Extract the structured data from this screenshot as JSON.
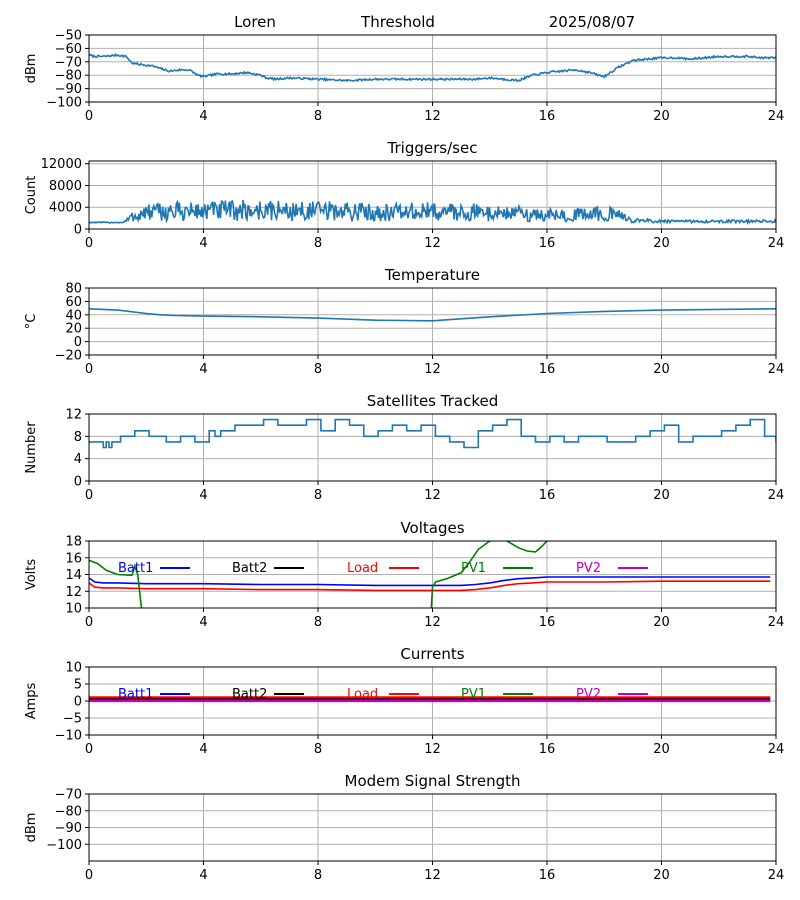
{
  "header": {
    "station": "Loren",
    "plot": "Threshold",
    "date": "2025/08/07"
  },
  "chart_data": [
    {
      "type": "line",
      "title": "",
      "ylabel": "dBm",
      "xlim": [
        0,
        24
      ],
      "ylim": [
        -100,
        -50
      ],
      "xticks": [
        0,
        4,
        8,
        12,
        16,
        20,
        24
      ],
      "yticks": [
        -100,
        -90,
        -80,
        -70,
        -60,
        -50
      ],
      "grid": true,
      "noise": 0.8,
      "series": [
        {
          "name": "",
          "color": "#1f77b4",
          "x": [
            0,
            0.2,
            0.5,
            1.0,
            1.3,
            1.5,
            1.8,
            2.2,
            2.5,
            2.8,
            3.2,
            3.5,
            3.8,
            4.0,
            4.5,
            5.0,
            5.5,
            6.0,
            6.2,
            6.5,
            7.0,
            8.0,
            9.0,
            10.0,
            11.0,
            12.0,
            13.0,
            13.5,
            14.0,
            14.5,
            15.0,
            15.5,
            16.0,
            16.5,
            17.0,
            17.5,
            17.8,
            18.0,
            18.5,
            19.0,
            20.0,
            20.5,
            21.0,
            22.0,
            23.0,
            23.5,
            24.0
          ],
          "y": [
            -65,
            -66,
            -66,
            -65,
            -66,
            -71,
            -72,
            -73,
            -75,
            -77,
            -76,
            -76,
            -80,
            -81,
            -79,
            -79,
            -78,
            -80,
            -82,
            -83,
            -82,
            -83,
            -84,
            -83,
            -83,
            -83,
            -83,
            -83,
            -82,
            -83,
            -84,
            -80,
            -78,
            -77,
            -76,
            -78,
            -80,
            -81,
            -74,
            -69,
            -67,
            -67,
            -68,
            -66,
            -66,
            -67,
            -67
          ]
        }
      ]
    },
    {
      "type": "line",
      "title": "Triggers/sec",
      "ylabel": "Count",
      "xlim": [
        0,
        24
      ],
      "ylim": [
        0,
        12500
      ],
      "xticks": [
        0,
        4,
        8,
        12,
        16,
        20,
        24
      ],
      "yticks": [
        0,
        4000,
        8000,
        12000
      ],
      "grid": true,
      "noise": 0.85,
      "series": [
        {
          "name": "",
          "color": "#1f77b4",
          "x": [
            0,
            1.2,
            1.5,
            2.0,
            3.0,
            4.0,
            5.0,
            6.0,
            7.0,
            8.0,
            9.0,
            10.0,
            11.0,
            12.0,
            13.0,
            14.0,
            15.0,
            16.0,
            17.0,
            18.0,
            18.5,
            19.0,
            20.0,
            21.0,
            22.0,
            23.0,
            24.0
          ],
          "y": [
            1200,
            1200,
            2200,
            3000,
            3200,
            3300,
            3400,
            3400,
            3300,
            3300,
            3200,
            3100,
            3100,
            3200,
            3100,
            3000,
            2800,
            2500,
            2600,
            2900,
            2400,
            1600,
            1400,
            1400,
            1400,
            1400,
            1400
          ]
        }
      ]
    },
    {
      "type": "line",
      "title": "Temperature",
      "ylabel": "°C",
      "xlim": [
        0,
        24
      ],
      "ylim": [
        -20,
        80
      ],
      "xticks": [
        0,
        4,
        8,
        12,
        16,
        20,
        24
      ],
      "yticks": [
        -20,
        0,
        20,
        40,
        60,
        80
      ],
      "grid": true,
      "noise": 0,
      "series": [
        {
          "name": "",
          "color": "#1f77b4",
          "x": [
            0,
            1.0,
            2.0,
            2.5,
            3.0,
            4.0,
            6.0,
            8.0,
            10.0,
            12.0,
            13.0,
            14.0,
            16.0,
            18.0,
            20.0,
            22.0,
            24.0
          ],
          "y": [
            49,
            47,
            42,
            40,
            39,
            38,
            37,
            35,
            32,
            31,
            34,
            37,
            42,
            45,
            47,
            48,
            49
          ]
        }
      ]
    },
    {
      "type": "line",
      "title": "Satellites Tracked",
      "ylabel": "Number",
      "xlim": [
        0,
        24
      ],
      "ylim": [
        0,
        12
      ],
      "xticks": [
        0,
        4,
        8,
        12,
        16,
        20,
        24
      ],
      "yticks": [
        0,
        4,
        8,
        12
      ],
      "grid": true,
      "noise": 0,
      "step": true,
      "series": [
        {
          "name": "",
          "color": "#1f77b4",
          "x": [
            0,
            0.5,
            0.6,
            0.7,
            0.8,
            0.9,
            1.1,
            1.6,
            2.1,
            2.7,
            3.2,
            3.7,
            4.2,
            4.4,
            4.6,
            5.1,
            5.6,
            6.1,
            6.6,
            7.1,
            7.6,
            8.1,
            8.6,
            9.1,
            9.6,
            10.1,
            10.6,
            11.1,
            11.6,
            12.1,
            12.6,
            13.1,
            13.6,
            14.1,
            14.6,
            15.1,
            15.6,
            16.1,
            16.6,
            17.1,
            17.6,
            18.1,
            18.6,
            19.1,
            19.6,
            20.1,
            20.6,
            21.1,
            21.6,
            22.1,
            22.6,
            23.1,
            23.6,
            24.0
          ],
          "y": [
            7,
            6,
            7,
            6,
            7,
            7,
            8,
            9,
            8,
            7,
            8,
            7,
            9,
            8,
            9,
            10,
            10,
            11,
            10,
            10,
            11,
            9,
            11,
            10,
            8,
            9,
            10,
            9,
            10,
            8,
            7,
            6,
            9,
            10,
            11,
            8,
            7,
            8,
            7,
            8,
            8,
            7,
            7,
            8,
            9,
            10,
            7,
            8,
            8,
            9,
            10,
            11,
            8,
            7
          ]
        }
      ]
    },
    {
      "type": "line",
      "title": "Voltages",
      "ylabel": "Volts",
      "xlim": [
        0,
        24
      ],
      "ylim": [
        10,
        18
      ],
      "xticks": [
        0,
        4,
        8,
        12,
        16,
        20,
        24
      ],
      "yticks": [
        10,
        12,
        14,
        16,
        18
      ],
      "grid": true,
      "noise": 0,
      "legend": "inside-top",
      "series": [
        {
          "name": "Batt1",
          "color": "#0000ff",
          "x": [
            0,
            0.2,
            0.5,
            1.0,
            2.0,
            4.0,
            6.0,
            8.0,
            10.0,
            12.0,
            13.0,
            13.5,
            14.0,
            14.5,
            15.0,
            15.5,
            16.0,
            18.0,
            20.0,
            22.0,
            23.8
          ],
          "y": [
            13.6,
            13.1,
            13.0,
            13.0,
            12.9,
            12.9,
            12.8,
            12.8,
            12.7,
            12.7,
            12.7,
            12.8,
            13.0,
            13.3,
            13.5,
            13.6,
            13.7,
            13.7,
            13.7,
            13.7,
            13.7
          ]
        },
        {
          "name": "Batt2",
          "color": "#000000",
          "x": [],
          "y": []
        },
        {
          "name": "Load",
          "color": "#ff0000",
          "x": [
            0,
            0.2,
            0.5,
            1.0,
            2.0,
            4.0,
            6.0,
            8.0,
            10.0,
            12.0,
            13.0,
            13.5,
            14.0,
            14.5,
            15.0,
            15.5,
            16.0,
            18.0,
            20.0,
            22.0,
            23.8
          ],
          "y": [
            13.0,
            12.5,
            12.4,
            12.4,
            12.3,
            12.3,
            12.2,
            12.2,
            12.1,
            12.1,
            12.1,
            12.2,
            12.4,
            12.7,
            12.9,
            13.0,
            13.1,
            13.1,
            13.2,
            13.2,
            13.2
          ]
        },
        {
          "name": "PV1",
          "color": "#008000",
          "x": [
            0,
            0.3,
            0.6,
            1.0,
            1.5,
            1.6,
            1.7,
            1.8,
            1.85,
            11.95,
            12.0,
            12.1,
            12.5,
            13.0,
            13.3,
            13.6,
            14.0,
            14.5,
            15.0,
            15.3,
            15.6,
            15.8,
            16.0
          ],
          "y": [
            15.7,
            15.3,
            14.5,
            14.0,
            13.9,
            15.0,
            14.0,
            11.0,
            9.5,
            9.5,
            12.5,
            13.1,
            13.5,
            14.2,
            15.5,
            17.0,
            18.0,
            18.2,
            17.2,
            16.8,
            16.7,
            17.3,
            18.0
          ]
        },
        {
          "name": "PV2",
          "color": "#bf00bf",
          "x": [],
          "y": []
        }
      ]
    },
    {
      "type": "line",
      "title": "Currents",
      "ylabel": "Amps",
      "xlim": [
        0,
        24
      ],
      "ylim": [
        -10,
        10
      ],
      "xticks": [
        0,
        4,
        8,
        12,
        16,
        20,
        24
      ],
      "yticks": [
        -10,
        -5,
        0,
        5,
        10
      ],
      "grid": true,
      "noise": 0,
      "legend": "inside-top",
      "series": [
        {
          "name": "Batt1",
          "color": "#0000ff",
          "x": [
            0,
            23.8
          ],
          "y": [
            0.2,
            0.2
          ]
        },
        {
          "name": "Batt2",
          "color": "#000000",
          "x": [
            0,
            23.8
          ],
          "y": [
            0.8,
            0.8
          ]
        },
        {
          "name": "Load",
          "color": "#ff0000",
          "x": [
            0,
            23.8
          ],
          "y": [
            1.1,
            1.1
          ]
        },
        {
          "name": "PV1",
          "color": "#008000",
          "x": [],
          "y": []
        },
        {
          "name": "PV2",
          "color": "#bf00bf",
          "x": [
            0,
            23.8
          ],
          "y": [
            0.0,
            0.0
          ]
        }
      ]
    },
    {
      "type": "line",
      "title": "Modem Signal Strength",
      "ylabel": "dBm",
      "xlim": [
        0,
        24
      ],
      "ylim": [
        -110,
        -70
      ],
      "xticks": [
        0,
        4,
        8,
        12,
        16,
        20,
        24
      ],
      "yticks": [
        -100,
        -90,
        -80,
        -70
      ],
      "grid": true,
      "noise": 0,
      "series": []
    }
  ]
}
